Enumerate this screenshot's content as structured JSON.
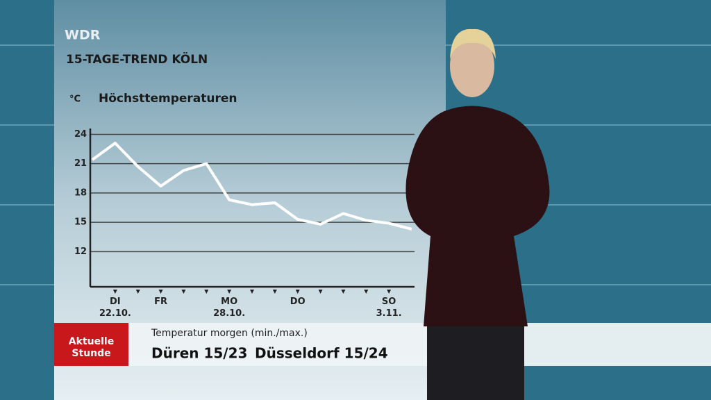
{
  "header": {
    "channel": "WDR",
    "title": "15-TAGE-TREND KÖLN"
  },
  "chart_data": {
    "type": "line",
    "title": "Höchsttemperaturen",
    "y_label": "°C",
    "categories": [
      null,
      "DI\n22.10.",
      null,
      "FR",
      null,
      null,
      "MO\n28.10.",
      null,
      null,
      "DO",
      null,
      null,
      null,
      "SO\n3.11.",
      null
    ],
    "values": [
      21.4,
      23.1,
      20.7,
      18.7,
      20.3,
      21.0,
      17.3,
      16.8,
      17.0,
      15.3,
      14.8,
      15.9,
      15.2,
      14.9,
      14.3
    ],
    "color": "#ffffff",
    "ylim": [
      8.4,
      24.6
    ],
    "yticks": [
      12,
      15,
      18,
      21,
      24
    ],
    "grid": true
  },
  "ticker": {
    "logo": "Aktuelle\nStunde",
    "heading": "Temperatur morgen (min./max.)",
    "items": [
      "Düren 15/23",
      "Düsseldorf 15/24"
    ]
  }
}
